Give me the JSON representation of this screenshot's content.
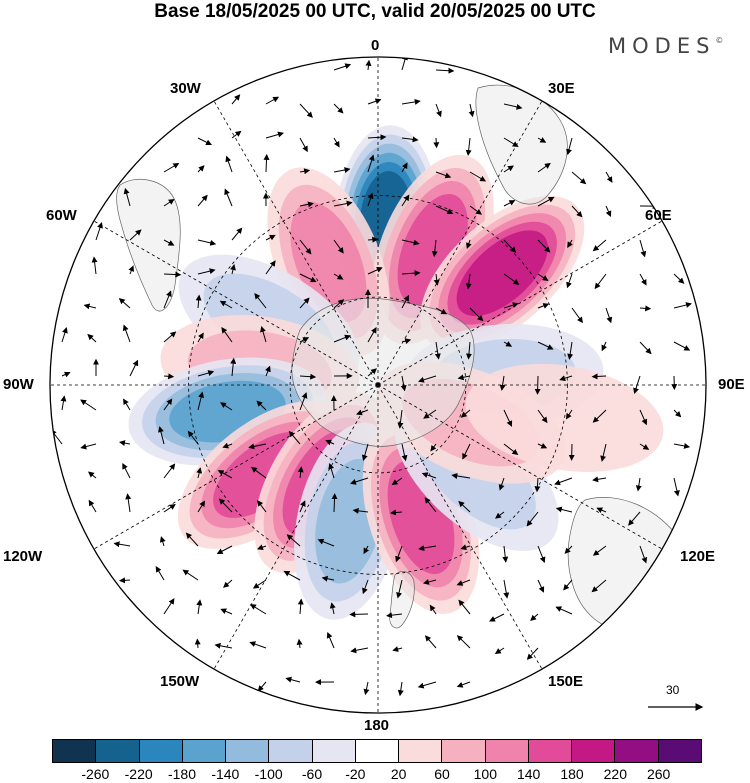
{
  "title": "Base 18/05/2025 00 UTC, valid 20/05/2025 00 UTC",
  "brand": "MODES",
  "brand_mark": "©",
  "longitude_labels": [
    "0",
    "30E",
    "60E",
    "90E",
    "120E",
    "150E",
    "180",
    "150W",
    "120W",
    "90W",
    "60W",
    "30W"
  ],
  "reference_vector_value": "30",
  "colorbar": {
    "colors": [
      "#10344f",
      "#15628f",
      "#2a86bd",
      "#5aa3cf",
      "#93bbdd",
      "#c3d2ea",
      "#e6e6f3",
      "#ffffff",
      "#fbdcdc",
      "#f6b1c0",
      "#ef83ac",
      "#e14b99",
      "#c41985",
      "#930e83",
      "#5b0b74"
    ],
    "labels": [
      "-260",
      "-220",
      "-180",
      "-140",
      "-100",
      "-60",
      "-20",
      "20",
      "60",
      "100",
      "140",
      "180",
      "220",
      "260"
    ]
  },
  "anomaly_centers": [
    {
      "lon": 3,
      "lat": -38,
      "value": -230
    },
    {
      "lon": 22,
      "lat": -42,
      "value": 150
    },
    {
      "lon": 48,
      "lat": -36,
      "value": 200
    },
    {
      "lon": -22,
      "lat": -46,
      "value": 110
    },
    {
      "lon": -60,
      "lat": -48,
      "value": -70
    },
    {
      "lon": -82,
      "lat": -50,
      "value": 90
    },
    {
      "lon": -100,
      "lat": -40,
      "value": -170
    },
    {
      "lon": -128,
      "lat": -42,
      "value": 140
    },
    {
      "lon": -150,
      "lat": -52,
      "value": 160
    },
    {
      "lon": -168,
      "lat": -44,
      "value": -130
    },
    {
      "lon": 162,
      "lat": -44,
      "value": 140
    },
    {
      "lon": 132,
      "lat": -46,
      "value": -60
    },
    {
      "lon": 86,
      "lat": -48,
      "value": -90
    },
    {
      "lon": 112,
      "lat": -56,
      "value": 70
    },
    {
      "lon": 100,
      "lat": -30,
      "value": 40
    }
  ]
}
